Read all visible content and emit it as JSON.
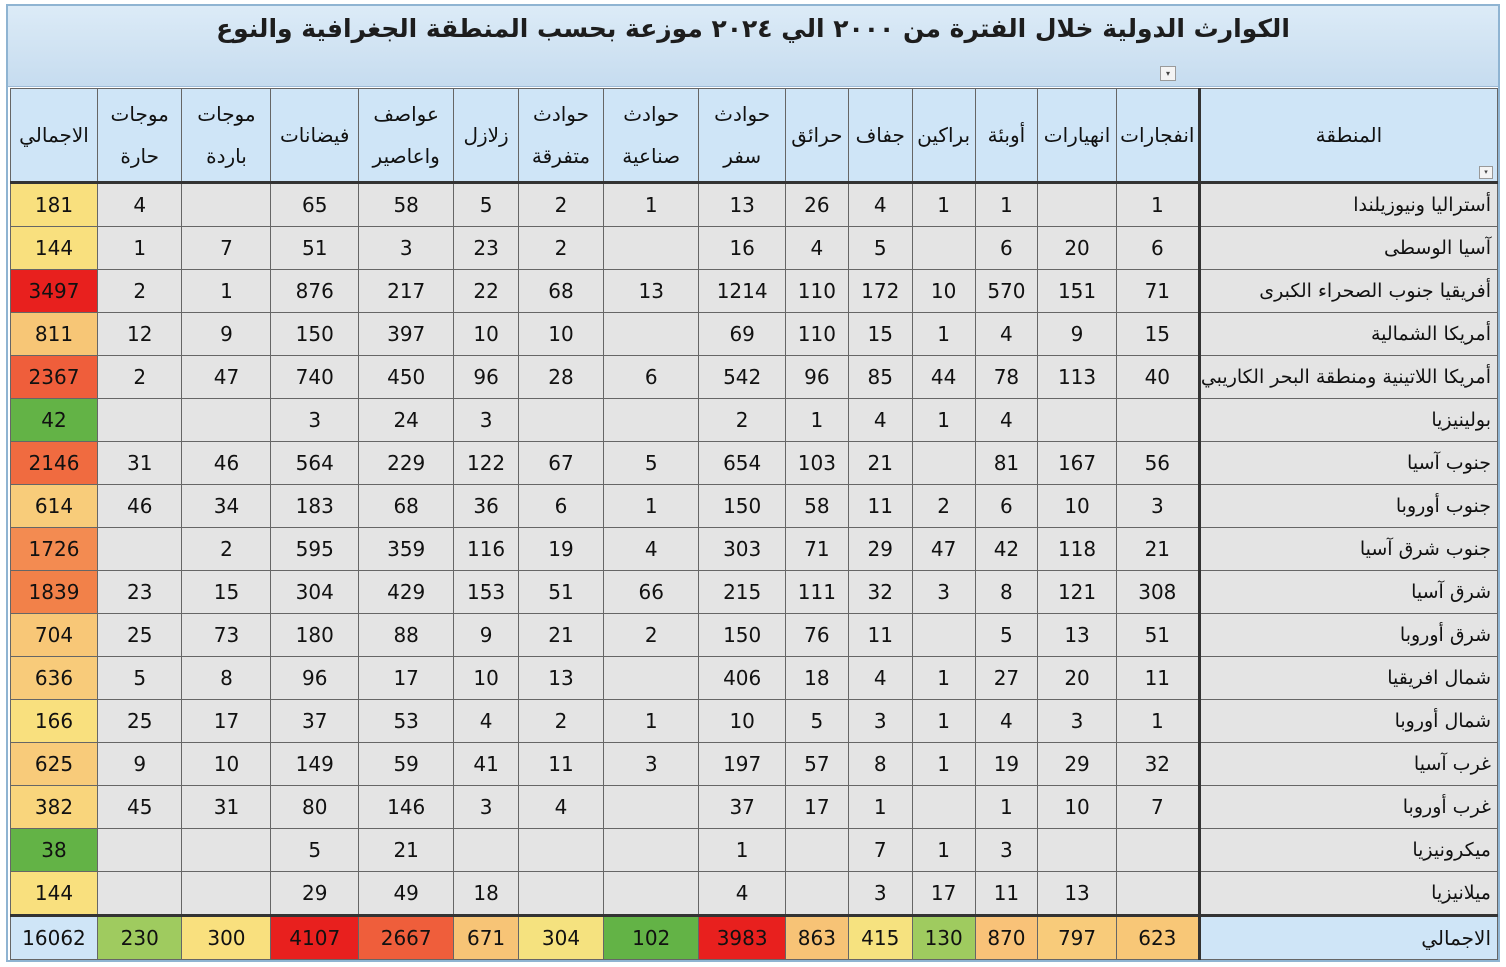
{
  "title": "الكوارث الدولية خلال الفترة من ٢٠٠٠ الي ٢٠٢٤ موزعة بحسب المنطقة الجغرافية والنوع",
  "filter_icon": "▾",
  "headers": [
    "المنطقة",
    "انفجارات",
    "انهيارات",
    "أوبئة",
    "براكين",
    "جفاف",
    "حرائق",
    "حوادث سفر",
    "حوادث صناعية",
    "حوادث متفرقة",
    "زلازل",
    "عواصف واعاصير",
    "فيضانات",
    "موجات باردة",
    "موجات حارة",
    "الاجمالي"
  ],
  "rows": [
    {
      "region": "أستراليا ونيوزيلندا",
      "v": [
        "1",
        "",
        "1",
        "1",
        "4",
        "26",
        "13",
        "1",
        "2",
        "5",
        "58",
        "65",
        "",
        "4"
      ],
      "total": "181",
      "color": "#f9e07e"
    },
    {
      "region": "آسيا الوسطى",
      "v": [
        "6",
        "20",
        "6",
        "",
        "5",
        "4",
        "16",
        "",
        "2",
        "23",
        "3",
        "51",
        "7",
        "1"
      ],
      "total": "144",
      "color": "#f9e07e"
    },
    {
      "region": "أفريقيا جنوب الصحراء الكبرى",
      "v": [
        "71",
        "151",
        "570",
        "10",
        "172",
        "110",
        "1214",
        "13",
        "68",
        "22",
        "217",
        "876",
        "1",
        "2"
      ],
      "total": "3497",
      "color": "#e8201e"
    },
    {
      "region": "أمريكا الشمالية",
      "v": [
        "15",
        "9",
        "4",
        "1",
        "15",
        "110",
        "69",
        "",
        "10",
        "10",
        "397",
        "150",
        "9",
        "12"
      ],
      "total": "811",
      "color": "#f7c676"
    },
    {
      "region": "أمريكا اللاتينية ومنطقة البحر الكاريبي",
      "v": [
        "40",
        "113",
        "78",
        "44",
        "85",
        "96",
        "542",
        "6",
        "28",
        "96",
        "450",
        "740",
        "47",
        "2"
      ],
      "total": "2367",
      "color": "#ef5e3b"
    },
    {
      "region": "بولينيزيا",
      "v": [
        "",
        "",
        "4",
        "1",
        "4",
        "1",
        "2",
        "",
        "",
        "3",
        "24",
        "3",
        "",
        ""
      ],
      "total": "42",
      "color": "#63b346"
    },
    {
      "region": "جنوب آسيا",
      "v": [
        "56",
        "167",
        "81",
        "",
        "21",
        "103",
        "654",
        "5",
        "67",
        "122",
        "229",
        "564",
        "46",
        "31"
      ],
      "total": "2146",
      "color": "#f06b40"
    },
    {
      "region": "جنوب أوروبا",
      "v": [
        "3",
        "10",
        "6",
        "2",
        "11",
        "58",
        "150",
        "1",
        "6",
        "36",
        "68",
        "183",
        "34",
        "46"
      ],
      "total": "614",
      "color": "#f8cc7a"
    },
    {
      "region": "جنوب شرق آسيا",
      "v": [
        "21",
        "118",
        "42",
        "47",
        "29",
        "71",
        "303",
        "4",
        "19",
        "116",
        "359",
        "595",
        "2",
        ""
      ],
      "total": "1726",
      "color": "#f38b51"
    },
    {
      "region": "شرق آسيا",
      "v": [
        "308",
        "121",
        "8",
        "3",
        "32",
        "111",
        "215",
        "66",
        "51",
        "153",
        "429",
        "304",
        "15",
        "23"
      ],
      "total": "1839",
      "color": "#f28149"
    },
    {
      "region": "شرق أوروبا",
      "v": [
        "51",
        "13",
        "5",
        "",
        "11",
        "76",
        "150",
        "2",
        "21",
        "9",
        "88",
        "180",
        "73",
        "25"
      ],
      "total": "704",
      "color": "#f8c777"
    },
    {
      "region": "شمال افريقيا",
      "v": [
        "11",
        "20",
        "27",
        "1",
        "4",
        "18",
        "406",
        "",
        "13",
        "10",
        "17",
        "96",
        "8",
        "5"
      ],
      "total": "636",
      "color": "#f8cb7a"
    },
    {
      "region": "شمال أوروبا",
      "v": [
        "1",
        "3",
        "4",
        "1",
        "3",
        "5",
        "10",
        "1",
        "2",
        "4",
        "53",
        "37",
        "17",
        "25"
      ],
      "total": "166",
      "color": "#f9e07e"
    },
    {
      "region": "غرب آسيا",
      "v": [
        "32",
        "29",
        "19",
        "1",
        "8",
        "57",
        "197",
        "3",
        "11",
        "41",
        "59",
        "149",
        "10",
        "9"
      ],
      "total": "625",
      "color": "#f8cb7a"
    },
    {
      "region": "غرب أوروبا",
      "v": [
        "7",
        "10",
        "1",
        "",
        "1",
        "17",
        "37",
        "",
        "4",
        "3",
        "146",
        "80",
        "31",
        "45"
      ],
      "total": "382",
      "color": "#f9d57c"
    },
    {
      "region": "ميكرونيزيا",
      "v": [
        "",
        "",
        "3",
        "1",
        "7",
        "",
        "1",
        "",
        "",
        "",
        "21",
        "5",
        "",
        ""
      ],
      "total": "38",
      "color": "#63b346"
    },
    {
      "region": "ميلانيزيا",
      "v": [
        "",
        "13",
        "11",
        "17",
        "3",
        "",
        "4",
        "",
        "",
        "18",
        "49",
        "29",
        "",
        ""
      ],
      "total": "144",
      "color": "#f9e07e"
    }
  ],
  "sum_row": {
    "label": "الاجمالي",
    "values": [
      "623",
      "797",
      "870",
      "130",
      "415",
      "863",
      "3983",
      "102",
      "304",
      "671",
      "2667",
      "4107",
      "300",
      "230"
    ],
    "colors": [
      "#f8c777",
      "#f8cb7a",
      "#f9c278",
      "#9fcb5f",
      "#f6e27f",
      "#f7c376",
      "#e8201e",
      "#63b346",
      "#f5e27f",
      "#f7c476",
      "#ef5e3b",
      "#e8201e",
      "#f9e07e",
      "#9fcb5f"
    ],
    "total": "16062"
  }
}
